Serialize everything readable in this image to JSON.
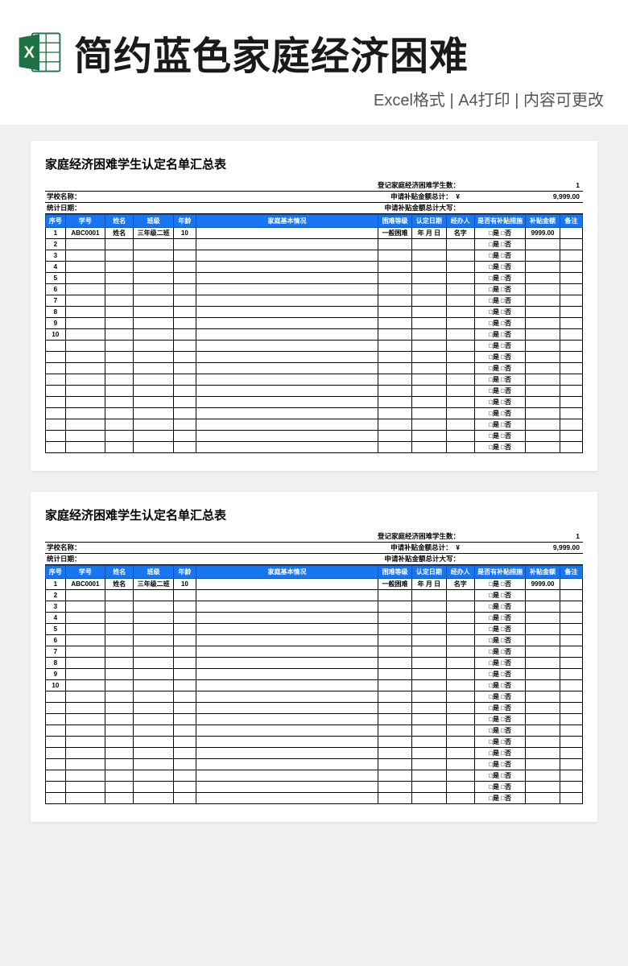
{
  "header": {
    "main_title": "简约蓝色家庭经济困难",
    "subtitle": "Excel格式 | A4打印 | 内容可更改",
    "icon_accent": "#1e7145",
    "icon_light": "#ffffff"
  },
  "colors": {
    "bg": "#f0f0f0",
    "sheet_bg": "#ffffff",
    "header_fill": "#1976f2",
    "header_text": "#ffffff",
    "border": "#000000"
  },
  "sheet": {
    "title": "家庭经济困难学生认定名单汇总表",
    "meta": {
      "school_label": "学校名称：",
      "stat_date_label": "统计日期：",
      "count_label": "登记家庭经济困难学生数：",
      "count_value": "1",
      "amount_label": "申请补贴金额总计：",
      "amount_currency": "¥",
      "amount_value": "9,999.00",
      "amount_words_label": "申请补贴金额总计大写：",
      "amount_words_value": ""
    },
    "columns": [
      "序号",
      "学号",
      "姓名",
      "班级",
      "年龄",
      "家庭基本情况",
      "困难等级",
      "认定日期",
      "经办人",
      "是否有补贴措施",
      "补贴金额",
      "备注"
    ],
    "subsidy_option": "□是 □否",
    "first_row": {
      "seq": "1",
      "id": "ABC0001",
      "name": "姓名",
      "class": "三年级二班",
      "age": "10",
      "info": "",
      "level": "一般困难",
      "date": "年 月 日",
      "agent": "名字",
      "subsidy": "□是 □否",
      "amount": "9999.00",
      "note": ""
    },
    "row_count_numbered": 10,
    "row_count_blank": 10
  }
}
